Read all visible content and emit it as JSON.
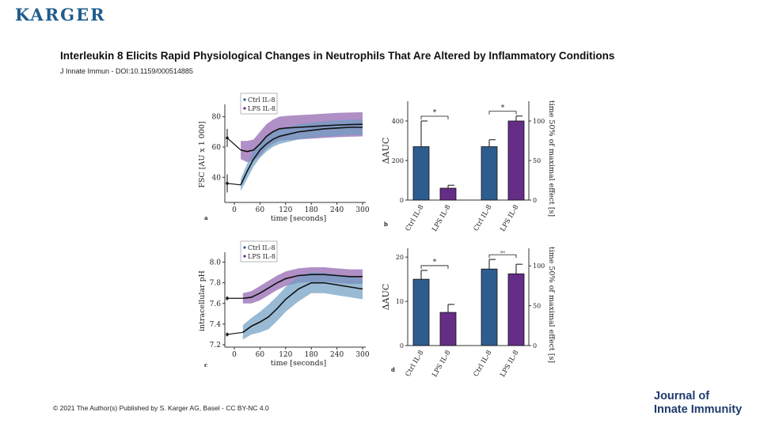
{
  "header": {
    "logo": "KARGER",
    "title": "Interleukin 8 Elicits Rapid Physiological Changes in Neutrophils That Are Altered by Inflammatory Conditions",
    "citation": "J Innate Immun - DOI:10.1159/000514885"
  },
  "footer": {
    "copyright": "© 2021 The Author(s) Published by S. Karger AG, Basel - CC BY-NC 4.0",
    "journal_line1": "Journal of",
    "journal_line2": "Innate Immunity"
  },
  "colors": {
    "ctrl": "#2d5d8f",
    "lps": "#662d87",
    "ctrl_band": "#6e9cc2",
    "lps_band": "#8e5fae"
  },
  "chart_data": [
    {
      "panel": "a",
      "type": "line",
      "xlabel": "time [seconds]",
      "ylabel": "FSC [AU x 1 000]",
      "xticks": [
        0,
        60,
        120,
        180,
        240,
        300
      ],
      "yticks": [
        40,
        60,
        80
      ],
      "xlim": [
        -20,
        310
      ],
      "ylim": [
        25,
        85
      ],
      "legend": [
        "Ctrl IL-8",
        "LPS IL-8"
      ],
      "baseline": {
        "Ctrl IL-8": 36,
        "LPS IL-8": 66
      },
      "series": [
        {
          "name": "LPS IL-8",
          "x": [
            15,
            30,
            45,
            60,
            75,
            90,
            105,
            120,
            150,
            180,
            210,
            240,
            270,
            300
          ],
          "y": [
            58,
            57,
            58,
            62,
            67,
            70,
            72,
            72.5,
            73,
            73.5,
            74,
            74.5,
            74.8,
            75
          ],
          "band": [
            6,
            7,
            7,
            8,
            8,
            8,
            8,
            8,
            8,
            8,
            8,
            8,
            8,
            8
          ]
        },
        {
          "name": "Ctrl IL-8",
          "x": [
            15,
            30,
            45,
            60,
            75,
            90,
            105,
            120,
            150,
            180,
            210,
            240,
            270,
            300
          ],
          "y": [
            35,
            44,
            52,
            58,
            62,
            65,
            67,
            68,
            70,
            71,
            72,
            72.5,
            73,
            73
          ],
          "band": [
            4,
            5,
            5,
            5,
            5,
            5,
            5,
            5,
            5,
            5,
            5,
            5,
            5,
            5
          ]
        }
      ]
    },
    {
      "panel": "b",
      "type": "bar",
      "ylabel": "ΔAUC",
      "y2label": "time 50% of maximal effect [s]",
      "categories": [
        "Ctrl IL-8",
        "LPS IL-8",
        "Ctrl IL-8",
        "LPS IL-8"
      ],
      "values": [
        270,
        60,
        270,
        400
      ],
      "errors": [
        130,
        15,
        35,
        25
      ],
      "left_axis": {
        "ylim": [
          0,
          500
        ],
        "yticks": [
          0,
          200,
          400
        ]
      },
      "right_axis": {
        "ylim": [
          0,
          125
        ],
        "yticks": [
          0,
          50,
          100
        ]
      },
      "significance": [
        "*",
        "*"
      ]
    },
    {
      "panel": "c",
      "type": "line",
      "xlabel": "time [seconds]",
      "ylabel": "intracellular pH",
      "xticks": [
        0,
        60,
        120,
        180,
        240,
        300
      ],
      "yticks": [
        7.2,
        7.4,
        7.6,
        7.8,
        8.0
      ],
      "xlim": [
        -20,
        310
      ],
      "ylim": [
        7.2,
        8.05
      ],
      "legend": [
        "Ctrl IL-8",
        "LPS IL-8"
      ],
      "baseline": {
        "Ctrl IL-8": 7.3,
        "LPS IL-8": 7.65
      },
      "series": [
        {
          "name": "LPS IL-8",
          "x": [
            20,
            40,
            60,
            80,
            100,
            120,
            150,
            180,
            210,
            240,
            270,
            300
          ],
          "y": [
            7.65,
            7.66,
            7.7,
            7.75,
            7.8,
            7.84,
            7.87,
            7.88,
            7.88,
            7.87,
            7.86,
            7.86
          ],
          "band": [
            0.05,
            0.06,
            0.07,
            0.07,
            0.07,
            0.07,
            0.07,
            0.07,
            0.07,
            0.07,
            0.07,
            0.07
          ]
        },
        {
          "name": "Ctrl IL-8",
          "x": [
            20,
            40,
            60,
            80,
            100,
            120,
            150,
            180,
            210,
            240,
            270,
            300
          ],
          "y": [
            7.32,
            7.38,
            7.42,
            7.47,
            7.55,
            7.64,
            7.74,
            7.8,
            7.8,
            7.78,
            7.76,
            7.74
          ],
          "band": [
            0.07,
            0.08,
            0.1,
            0.12,
            0.12,
            0.12,
            0.12,
            0.1,
            0.1,
            0.1,
            0.1,
            0.1
          ]
        }
      ]
    },
    {
      "panel": "d",
      "type": "bar",
      "ylabel": "ΔAUC",
      "y2label": "time 50% of maximal effect [s]",
      "categories": [
        "Ctrl IL-8",
        "LPS IL-8",
        "Ctrl IL-8",
        "LPS IL-8"
      ],
      "values": [
        15,
        7.5,
        16,
        15
      ],
      "errors": [
        2,
        1.8,
        2,
        2
      ],
      "left_axis": {
        "ylim": [
          0,
          22
        ],
        "yticks": [
          0,
          10,
          20
        ]
      },
      "right_axis": {
        "ylim": [
          0,
          122
        ],
        "yticks": [
          0,
          50,
          100
        ]
      },
      "significance": [
        "*",
        "ns"
      ]
    }
  ]
}
